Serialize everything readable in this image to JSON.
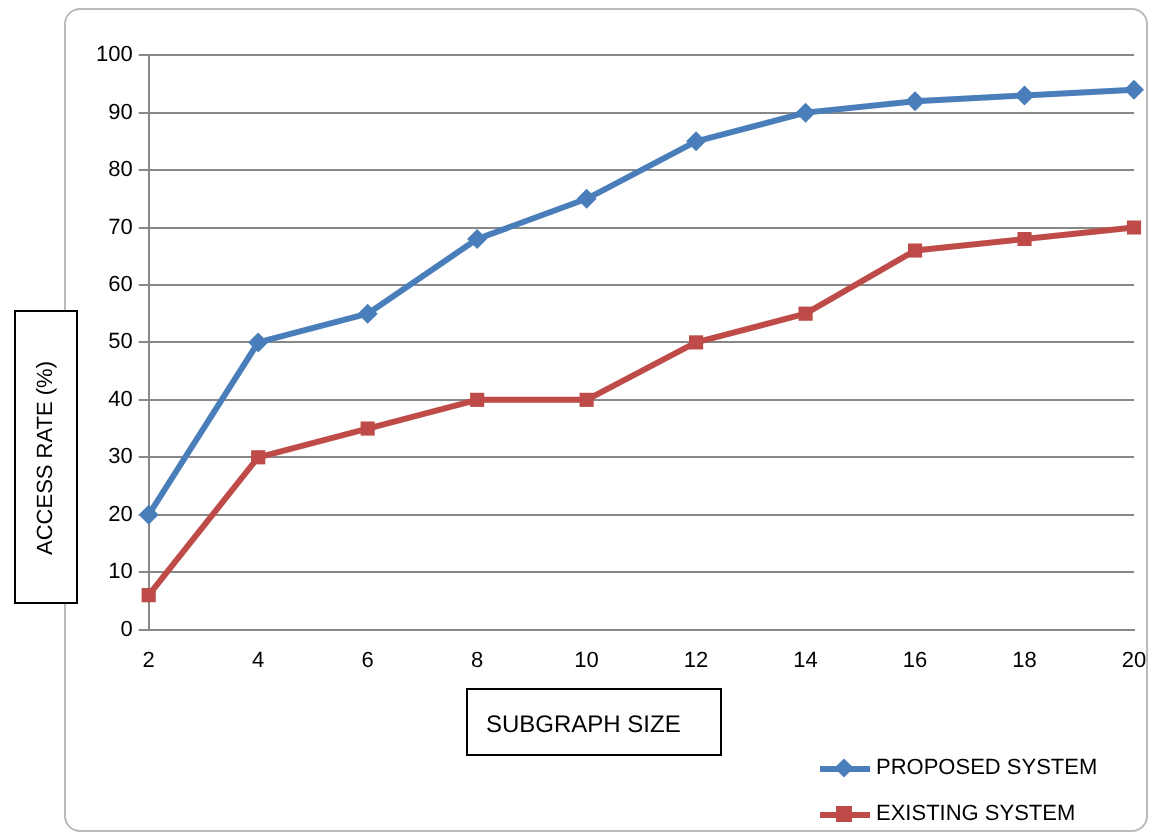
{
  "chart_data": {
    "type": "line",
    "xlabel": "SUBGRAPH SIZE",
    "ylabel": "ACCESS RATE (%)",
    "categories": [
      "2",
      "4",
      "6",
      "8",
      "10",
      "12",
      "14",
      "16",
      "18",
      "20"
    ],
    "series": [
      {
        "name": "PROPOSED SYSTEM",
        "color": "#4a7ebb",
        "marker": "diamond",
        "values": [
          20,
          50,
          55,
          68,
          75,
          85,
          90,
          92,
          93,
          94
        ]
      },
      {
        "name": "EXISTING SYSTEM",
        "color": "#be4b48",
        "marker": "square",
        "values": [
          6,
          30,
          35,
          40,
          40,
          50,
          55,
          66,
          68,
          70
        ]
      }
    ],
    "ylim": [
      0,
      100
    ],
    "yticks": [
      0,
      10,
      20,
      30,
      40,
      50,
      60,
      70,
      80,
      90,
      100
    ],
    "grid": "y",
    "legend": "bottom right",
    "line_style": "solid"
  }
}
